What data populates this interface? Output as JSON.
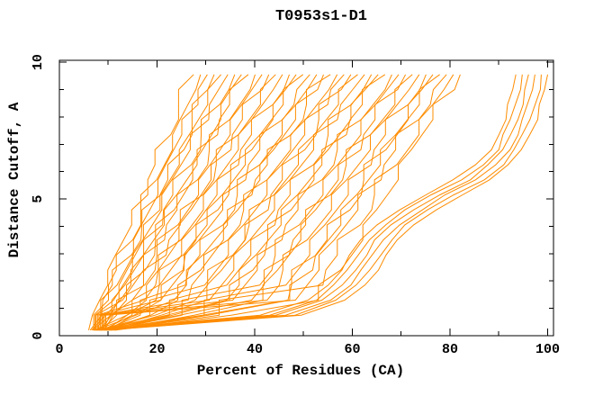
{
  "colors": {
    "curve": "#ff8c00",
    "axis": "#000000",
    "background": "#ffffff"
  },
  "chart_data": {
    "type": "line",
    "title": "T0953s1-D1",
    "xlabel": "Percent of Residues (CA)",
    "ylabel": "Distance Cutoff, A",
    "xlim": [
      0,
      101.2
    ],
    "ylim": [
      0,
      10.07
    ],
    "x_ticks": [
      0,
      20,
      40,
      60,
      80,
      100
    ],
    "x_minor_step": 10,
    "y_ticks": [
      0,
      5,
      10
    ],
    "y_minor_step": 1,
    "grid": false,
    "legend": false,
    "frame": "box-with-inward-ticks",
    "line_color": "#ff8c00",
    "curves": [
      [
        [
          6,
          0.2
        ],
        [
          8,
          1.2
        ],
        [
          16.6,
          4.8
        ],
        [
          27.5,
          9.55
        ]
      ],
      [
        [
          7,
          0.2
        ],
        [
          9.1,
          1.2
        ],
        [
          17.8,
          4.8
        ],
        [
          28.9,
          9.55
        ]
      ],
      [
        [
          7.9,
          0.2
        ],
        [
          10.2,
          1.2
        ],
        [
          19,
          4.8
        ],
        [
          30.3,
          9.55
        ]
      ],
      [
        [
          8.9,
          0.2
        ],
        [
          11.6,
          1.2
        ],
        [
          20.4,
          4.8
        ],
        [
          31.7,
          9.55
        ]
      ],
      [
        [
          6.3,
          0.2
        ],
        [
          9.3,
          1.2
        ],
        [
          19.8,
          4.8
        ],
        [
          33.1,
          9.55
        ]
      ],
      [
        [
          7.3,
          0.2
        ],
        [
          10.8,
          1.2
        ],
        [
          21.2,
          4.8
        ],
        [
          34.5,
          9.55
        ]
      ],
      [
        [
          8.2,
          0.2
        ],
        [
          12.2,
          1.2
        ],
        [
          22.6,
          4.8
        ],
        [
          35.9,
          9.55
        ]
      ],
      [
        [
          9.2,
          0.2
        ],
        [
          13.8,
          1.2
        ],
        [
          24.1,
          4.8
        ],
        [
          37.3,
          9.55
        ]
      ],
      [
        [
          6.6,
          0.2
        ],
        [
          11.8,
          1.2
        ],
        [
          23.6,
          4.8
        ],
        [
          38.7,
          9.55
        ]
      ],
      [
        [
          7.5,
          0.2
        ],
        [
          13.3,
          1.2
        ],
        [
          25.1,
          4.8
        ],
        [
          40.1,
          9.55
        ]
      ],
      [
        [
          8.5,
          0.2
        ],
        [
          15,
          1.2
        ],
        [
          26.7,
          4.8
        ],
        [
          41.5,
          9.55
        ]
      ],
      [
        [
          9.5,
          0.2
        ],
        [
          16.8,
          1.2
        ],
        [
          28.3,
          4.8
        ],
        [
          42.9,
          9.55
        ]
      ],
      [
        [
          6.8,
          0.2
        ],
        [
          14.9,
          1.2
        ],
        [
          27.8,
          4.8
        ],
        [
          44.3,
          9.55
        ]
      ],
      [
        [
          7.8,
          0.2
        ],
        [
          16.7,
          1.2
        ],
        [
          29.5,
          4.8
        ],
        [
          45.7,
          9.55
        ]
      ],
      [
        [
          8.8,
          0.2
        ],
        [
          18.6,
          1.2
        ],
        [
          31.1,
          4.8
        ],
        [
          47.1,
          9.55
        ]
      ],
      [
        [
          9.8,
          0.2
        ],
        [
          20.5,
          1.2
        ],
        [
          32.8,
          4.8
        ],
        [
          48.5,
          9.55
        ]
      ],
      [
        [
          7.1,
          0.2
        ],
        [
          18.7,
          1.2
        ],
        [
          32.4,
          4.8
        ],
        [
          49.9,
          9.55
        ]
      ],
      [
        [
          8.1,
          0.2
        ],
        [
          20.7,
          1.2
        ],
        [
          34.2,
          4.8
        ],
        [
          51.3,
          9.55
        ]
      ],
      [
        [
          9.1,
          0.2
        ],
        [
          22.7,
          1.2
        ],
        [
          35.9,
          4.8
        ],
        [
          52.7,
          9.55
        ]
      ],
      [
        [
          10,
          0.2
        ],
        [
          24.6,
          1.2
        ],
        [
          37.6,
          4.8
        ],
        [
          54.1,
          9.55
        ]
      ],
      [
        [
          7.4,
          0.2
        ],
        [
          23.1,
          1.2
        ],
        [
          37.4,
          4.8
        ],
        [
          55.5,
          9.55
        ]
      ],
      [
        [
          8.4,
          0.2
        ],
        [
          25.3,
          1.2
        ],
        [
          39.2,
          4.8
        ],
        [
          56.9,
          9.55
        ]
      ],
      [
        [
          9.3,
          0.2
        ],
        [
          27.3,
          1.2
        ],
        [
          40.9,
          4.8
        ],
        [
          58.3,
          9.55
        ]
      ],
      [
        [
          10.3,
          0.2
        ],
        [
          29.5,
          1.2
        ],
        [
          42.8,
          4.8
        ],
        [
          59.7,
          9.55
        ]
      ],
      [
        [
          7.7,
          0.2
        ],
        [
          28.1,
          1.2
        ],
        [
          42.6,
          4.8
        ],
        [
          61.1,
          9.55
        ]
      ],
      [
        [
          8.7,
          0.2
        ],
        [
          30.3,
          1.2
        ],
        [
          44.5,
          4.8
        ],
        [
          62.5,
          9.55
        ]
      ],
      [
        [
          9.6,
          0.2
        ],
        [
          32.5,
          1.2
        ],
        [
          46.3,
          4.8
        ],
        [
          63.9,
          9.55
        ]
      ],
      [
        [
          10.6,
          0.2
        ],
        [
          34.8,
          1.2
        ],
        [
          48.2,
          4.8
        ],
        [
          65.3,
          9.55
        ]
      ],
      [
        [
          8,
          0.2
        ],
        [
          33.5,
          1.2
        ],
        [
          48.1,
          4.8
        ],
        [
          66.7,
          9.55
        ]
      ],
      [
        [
          8.9,
          0.2
        ],
        [
          35.8,
          1.2
        ],
        [
          50,
          4.8
        ],
        [
          68.1,
          9.55
        ]
      ],
      [
        [
          9.9,
          0.2
        ],
        [
          38.2,
          1.2
        ],
        [
          52,
          4.8
        ],
        [
          69.5,
          9.55
        ]
      ],
      [
        [
          10.9,
          0.2
        ],
        [
          40.6,
          1.2
        ],
        [
          53.9,
          4.8
        ],
        [
          70.9,
          9.55
        ]
      ],
      [
        [
          8.2,
          0.2
        ],
        [
          39.3,
          1.2
        ],
        [
          53.8,
          4.8
        ],
        [
          72.3,
          9.55
        ]
      ],
      [
        [
          9.2,
          0.2
        ],
        [
          41.8,
          1.2
        ],
        [
          55.8,
          4.8
        ],
        [
          73.7,
          9.55
        ]
      ],
      [
        [
          10.2,
          0.2
        ],
        [
          44.3,
          1.2
        ],
        [
          57.9,
          4.8
        ],
        [
          75.1,
          9.55
        ]
      ],
      [
        [
          11.2,
          0.2
        ],
        [
          46.8,
          1.2
        ],
        [
          59.9,
          4.8
        ],
        [
          76.5,
          9.55
        ]
      ],
      [
        [
          8.5,
          0.2
        ],
        [
          45.7,
          1.2
        ],
        [
          59.9,
          4.8
        ],
        [
          77.9,
          9.55
        ]
      ],
      [
        [
          9.5,
          0.2
        ],
        [
          48.3,
          1.2
        ],
        [
          61.9,
          4.8
        ],
        [
          79.3,
          9.55
        ]
      ],
      [
        [
          10.5,
          0.2
        ],
        [
          50.9,
          1.2
        ],
        [
          64,
          4.8
        ],
        [
          80.7,
          9.55
        ]
      ],
      [
        [
          11.4,
          0.2
        ],
        [
          53.4,
          1.2
        ],
        [
          66,
          4.8
        ],
        [
          82.1,
          9.55
        ]
      ],
      [
        [
          7,
          0.2
        ],
        [
          30,
          0.5
        ],
        [
          48,
          0.9
        ],
        [
          56,
          2
        ],
        [
          63,
          3.8
        ],
        [
          72,
          4.9
        ],
        [
          82,
          5.8
        ],
        [
          88,
          6.6
        ],
        [
          91,
          7.8
        ],
        [
          93,
          9
        ],
        [
          93.5,
          9.55
        ]
      ],
      [
        [
          7.5,
          0.2
        ],
        [
          32,
          0.5
        ],
        [
          49.5,
          0.9
        ],
        [
          57.5,
          2
        ],
        [
          64.5,
          3.8
        ],
        [
          73.5,
          4.9
        ],
        [
          83.5,
          5.8
        ],
        [
          89.2,
          6.6
        ],
        [
          92.3,
          7.8
        ],
        [
          94.3,
          9
        ],
        [
          94.8,
          9.55
        ]
      ],
      [
        [
          8,
          0.2
        ],
        [
          34,
          0.5
        ],
        [
          51,
          0.9
        ],
        [
          59,
          2
        ],
        [
          66,
          3.8
        ],
        [
          75,
          4.9
        ],
        [
          85,
          5.8
        ],
        [
          90.4,
          6.6
        ],
        [
          93.6,
          7.8
        ],
        [
          95.6,
          9
        ],
        [
          96.1,
          9.55
        ]
      ],
      [
        [
          8.5,
          0.2
        ],
        [
          36,
          0.5
        ],
        [
          52.5,
          0.9
        ],
        [
          60.5,
          2
        ],
        [
          67.5,
          3.8
        ],
        [
          76.5,
          4.9
        ],
        [
          86.5,
          5.8
        ],
        [
          91.6,
          6.6
        ],
        [
          94.9,
          7.8
        ],
        [
          96.9,
          9
        ],
        [
          97.4,
          9.55
        ]
      ],
      [
        [
          9,
          0.2
        ],
        [
          38,
          0.5
        ],
        [
          54,
          0.9
        ],
        [
          62,
          2
        ],
        [
          69,
          3.8
        ],
        [
          78,
          4.9
        ],
        [
          88,
          5.8
        ],
        [
          92.8,
          6.6
        ],
        [
          96.2,
          7.8
        ],
        [
          98.2,
          9
        ],
        [
          98.7,
          9.55
        ]
      ],
      [
        [
          9.5,
          0.2
        ],
        [
          40,
          0.5
        ],
        [
          55.5,
          0.9
        ],
        [
          63.5,
          2
        ],
        [
          70.5,
          3.8
        ],
        [
          79.5,
          4.9
        ],
        [
          89.5,
          5.8
        ],
        [
          94,
          6.6
        ],
        [
          97.5,
          7.8
        ],
        [
          99.5,
          9
        ],
        [
          100,
          9.55
        ]
      ]
    ]
  }
}
